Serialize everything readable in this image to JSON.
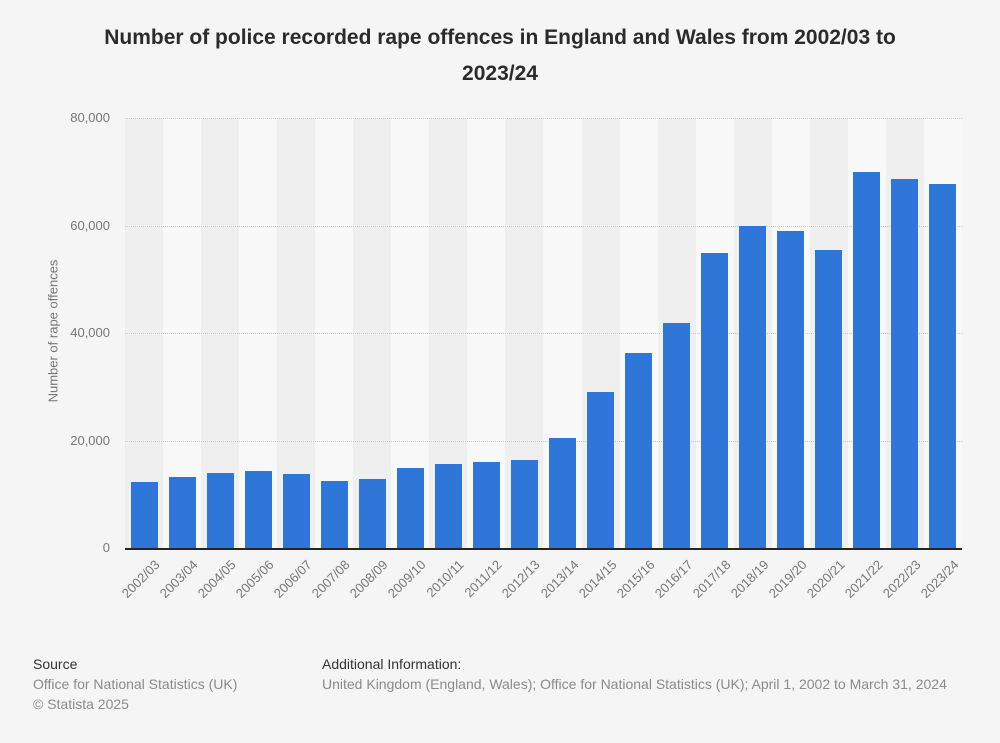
{
  "title": "Number of police recorded rape offences in England and Wales from 2002/03 to 2023/24",
  "chart_data": {
    "type": "bar",
    "title": "Number of police recorded rape offences in England and Wales from 2002/03 to 2023/24",
    "xlabel": "",
    "ylabel": "Number of rape offences",
    "ylim": [
      0,
      80000
    ],
    "grid": "horizontal-dotted",
    "legend": "none",
    "bar_color": "#2e77d8",
    "categories": [
      "2002/03",
      "2003/04",
      "2004/05",
      "2005/06",
      "2006/07",
      "2007/08",
      "2008/09",
      "2009/10",
      "2010/11",
      "2011/12",
      "2012/13",
      "2013/14",
      "2014/15",
      "2015/16",
      "2016/17",
      "2017/18",
      "2018/19",
      "2019/20",
      "2020/21",
      "2021/22",
      "2022/23",
      "2023/24"
    ],
    "values": [
      12300,
      13200,
      13900,
      14300,
      13700,
      12500,
      12900,
      14900,
      15700,
      16000,
      16300,
      20500,
      29100,
      36200,
      41900,
      54800,
      59900,
      59000,
      55400,
      69900,
      68600,
      67700
    ],
    "yticks": [
      {
        "value": 0,
        "label": "0"
      },
      {
        "value": 20000,
        "label": "20,000"
      },
      {
        "value": 40000,
        "label": "40,000"
      },
      {
        "value": 60000,
        "label": "60,000"
      },
      {
        "value": 80000,
        "label": "80,000"
      }
    ]
  },
  "colors": {
    "bar": "#2e77d8",
    "background": "#f5f5f5",
    "band_dark": "#efefef",
    "band_light": "#f8f8f8",
    "gridline": "#c9c9c9",
    "axis_line": "#262626",
    "title_text": "#2b2b2b",
    "tick_text": "#767676",
    "footer_label": "#333333",
    "footer_text": "#8a8a8a"
  },
  "footer": {
    "source_label": "Source",
    "source_value": "Office for National Statistics (UK)",
    "copyright": "© Statista 2025",
    "additional_label": "Additional Information:",
    "additional_value": "United Kingdom (England, Wales); Office for National Statistics (UK); April 1, 2002 to March 31, 2024"
  }
}
